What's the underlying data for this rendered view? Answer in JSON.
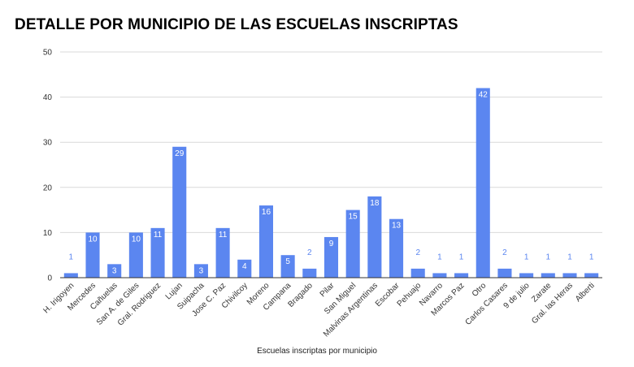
{
  "chart_data": {
    "type": "bar",
    "title": "DETALLE POR MUNICIPIO DE LAS ESCUELAS INSCRIPTAS",
    "xlabel": "Escuelas inscriptas por municipio",
    "ylabel": "",
    "ylim": [
      0,
      50
    ],
    "yticks": [
      "0",
      "10",
      "20",
      "30",
      "40",
      "50"
    ],
    "grid": true,
    "legend": "none",
    "bar_color": "#5b86f0",
    "categories": [
      "H. Irigoyen",
      "Mercedes",
      "Cañuelas",
      "San A. de Giles",
      "Gral. Rodriguez",
      "Lujan",
      "Suipacha",
      "Jose C. Paz",
      "Chivilcoy",
      "Moreno",
      "Campana",
      "Bragado",
      "Pilar",
      "San Miguel",
      "Malvinas Argentinas",
      "Escobar",
      "Pehuajo",
      "Navarro",
      "Marcos Paz",
      "Otro",
      "Carlos Casares",
      "9 de julio",
      "Zarate",
      "Gral. las Heras",
      "Alberti"
    ],
    "values": [
      1,
      10,
      3,
      10,
      11,
      29,
      3,
      11,
      4,
      16,
      5,
      2,
      9,
      15,
      18,
      13,
      2,
      1,
      1,
      42,
      2,
      1,
      1,
      1,
      1
    ],
    "data_labels": [
      "1",
      "10",
      "3",
      "10",
      "11",
      "29",
      "3",
      "11",
      "4",
      "16",
      "5",
      "2",
      "9",
      "15",
      "18",
      "13",
      "2",
      "1",
      "1",
      "42",
      "2",
      "1",
      "1",
      "1",
      "1"
    ]
  }
}
